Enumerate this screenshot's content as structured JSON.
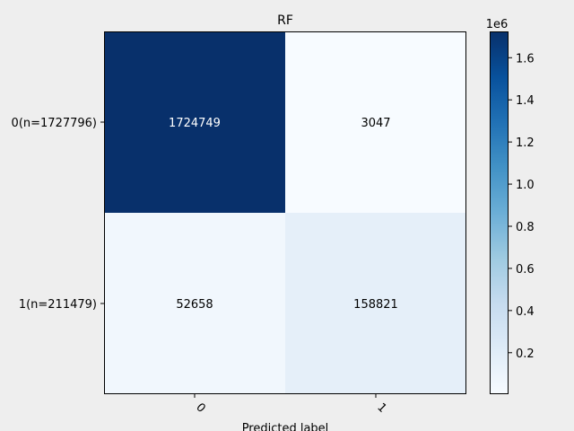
{
  "chart_data": {
    "type": "heatmap",
    "title": "RF",
    "xlabel": "Predicted label",
    "ylabel": "",
    "x_categories": [
      "0",
      "1"
    ],
    "y_categories": [
      "0(n=1727796)",
      "1(n=211479)"
    ],
    "values": [
      [
        1724749,
        3047
      ],
      [
        52658,
        158821
      ]
    ],
    "cell_labels": [
      [
        "1724749",
        "3047"
      ],
      [
        "52658",
        "158821"
      ]
    ],
    "colormap": "Blues",
    "colorbar": {
      "min": 3047,
      "max": 1724749,
      "ticks": [
        0.2,
        0.4,
        0.6,
        0.8,
        1.0,
        1.2,
        1.4,
        1.6
      ],
      "tick_labels": [
        "0.2",
        "0.4",
        "0.6",
        "0.8",
        "1.0",
        "1.2",
        "1.4",
        "1.6"
      ],
      "offset_label": "1e6",
      "scale": 1000000
    },
    "grid": false,
    "legend": "none",
    "colors": {
      "background": "#eeeeee",
      "plot_bg": "#ffffff",
      "cell_dark_text": "#000000",
      "cell_light_text": "#ffffff"
    }
  }
}
